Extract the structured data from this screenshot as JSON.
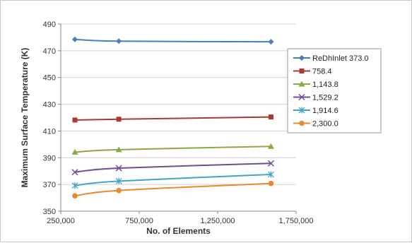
{
  "chart_data": {
    "type": "line",
    "title": "",
    "xlabel": "No. of Elements",
    "ylabel": "Maximum Surface Temperature (K)",
    "xlim": [
      250000,
      1750000
    ],
    "ylim": [
      350,
      490
    ],
    "x_ticks": [
      250000,
      750000,
      1250000,
      1750000
    ],
    "x_tick_labels": [
      "250,000",
      "750,000",
      "1,250,000",
      "1,750,000"
    ],
    "y_ticks": [
      350,
      370,
      390,
      410,
      430,
      450,
      470,
      490
    ],
    "y_tick_labels": [
      "350",
      "370",
      "390",
      "410",
      "430",
      "450",
      "470",
      "490"
    ],
    "grid": "horizontal",
    "legend_position": "right",
    "x": [
      340000,
      620000,
      1590000
    ],
    "series": [
      {
        "name": "ReDhInlet 373.0",
        "values": [
          478.5,
          477.2,
          476.7
        ],
        "color": "#4a7ebb",
        "marker": "diamond"
      },
      {
        "name": "758.4",
        "values": [
          418.2,
          418.8,
          420.5
        ],
        "color": "#a83a36",
        "marker": "square"
      },
      {
        "name": "1,143.8",
        "values": [
          394.2,
          396.0,
          398.5
        ],
        "color": "#8aab43",
        "marker": "triangle"
      },
      {
        "name": "1,529.2",
        "values": [
          379.2,
          382.2,
          385.8
        ],
        "color": "#6f4f94",
        "marker": "x"
      },
      {
        "name": "1,914.6",
        "values": [
          369.2,
          372.5,
          377.5
        ],
        "color": "#3fa6c6",
        "marker": "star"
      },
      {
        "name": "2,300.0",
        "values": [
          361.5,
          365.5,
          370.8
        ],
        "color": "#e8892f",
        "marker": "circle"
      }
    ]
  }
}
